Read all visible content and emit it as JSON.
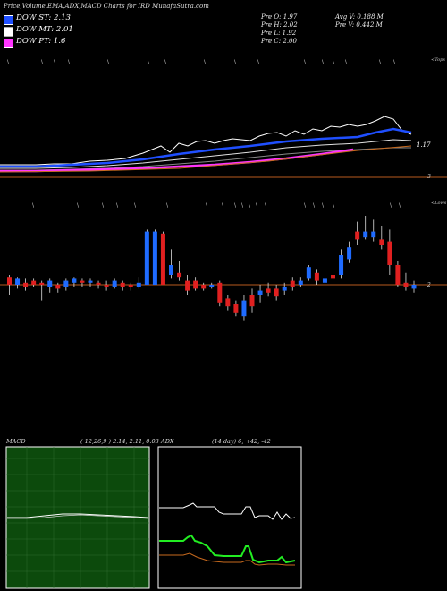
{
  "header": {
    "title": "Price,Volume,EMA,ADX,MACD Charts for IRD MunafaSutra.com"
  },
  "legend": [
    {
      "label": "DOW ST: 2.13",
      "color": "#1f4fff"
    },
    {
      "label": "DOW MT: 2.01",
      "color": "#ffffff"
    },
    {
      "label": "DOW PT: 1.6",
      "color": "#ff33ff"
    }
  ],
  "prev": {
    "open": "Pre   O: 1.97",
    "high": "Pre   H: 2.02",
    "low": "Pre   L: 1.92",
    "close": "Pre   C: 2.00",
    "avg_vol": "Avg V: 0.188  M",
    "prev_vol": "Pre   V: 0.442  M"
  },
  "price_panel": {
    "right_top_label": "<Tops",
    "level_label": "1.17",
    "level_value": "3"
  },
  "candle_panel": {
    "right_top_label": "<Lows",
    "level_value": "2"
  },
  "macd_panel": {
    "title": "MACD",
    "params": "( 12,26,9 ) 2.14,  2.11,  0.03"
  },
  "adx_panel": {
    "title": "ADX",
    "params": "(14  day) 6,  +42,  -42"
  },
  "chart_data": {
    "type": "candlestick",
    "title": "Price,Volume,EMA,ADX,MACD Charts for IRD MunafaSutra.com",
    "series": [
      {
        "name": "DOW ST",
        "value": 2.13
      },
      {
        "name": "DOW MT",
        "value": 2.01
      },
      {
        "name": "DOW PT",
        "value": 1.6
      }
    ],
    "candles": [
      {
        "o": 0.0,
        "c": 0.4,
        "h": 0.5,
        "l": -0.5,
        "up": false
      },
      {
        "o": 0.0,
        "c": 0.3,
        "h": 0.4,
        "l": -0.2,
        "up": true
      },
      {
        "o": 0.1,
        "c": -0.1,
        "h": 0.3,
        "l": -0.3,
        "up": false
      },
      {
        "o": 0.0,
        "c": 0.2,
        "h": 0.3,
        "l": -0.1,
        "up": false
      },
      {
        "o": 0.0,
        "c": 0.1,
        "h": 0.2,
        "l": -0.8,
        "up": false
      },
      {
        "o": -0.1,
        "c": 0.2,
        "h": 0.3,
        "l": -0.4,
        "up": true
      },
      {
        "o": 0.0,
        "c": -0.2,
        "h": 0.1,
        "l": -0.4,
        "up": false
      },
      {
        "o": -0.1,
        "c": 0.2,
        "h": 0.3,
        "l": -0.3,
        "up": true
      },
      {
        "o": 0.1,
        "c": 0.3,
        "h": 0.4,
        "l": -0.1,
        "up": true
      },
      {
        "o": 0.2,
        "c": 0.1,
        "h": 0.3,
        "l": -0.1,
        "up": false
      },
      {
        "o": 0.1,
        "c": 0.2,
        "h": 0.3,
        "l": -0.1,
        "up": true
      },
      {
        "o": 0.1,
        "c": 0.0,
        "h": 0.2,
        "l": -0.2,
        "up": false
      },
      {
        "o": 0.0,
        "c": -0.1,
        "h": 0.2,
        "l": -0.3,
        "up": false
      },
      {
        "o": -0.1,
        "c": 0.2,
        "h": 0.3,
        "l": -0.2,
        "up": true
      },
      {
        "o": 0.1,
        "c": -0.1,
        "h": 0.2,
        "l": -0.3,
        "up": false
      },
      {
        "o": 0.0,
        "c": -0.1,
        "h": 0.1,
        "l": -0.3,
        "up": false
      },
      {
        "o": -0.1,
        "c": 0.1,
        "h": 0.4,
        "l": -0.2,
        "up": true
      },
      {
        "o": 0.0,
        "c": 2.7,
        "h": 2.8,
        "l": 0.0,
        "up": true
      },
      {
        "o": 0.0,
        "c": 2.7,
        "h": 2.8,
        "l": 0.0,
        "up": true
      },
      {
        "o": 0.0,
        "c": 2.6,
        "h": 2.7,
        "l": 0.0,
        "up": false
      },
      {
        "o": 0.5,
        "c": 1.0,
        "h": 1.8,
        "l": 0.3,
        "up": true
      },
      {
        "o": 0.4,
        "c": 0.6,
        "h": 1.2,
        "l": 0.2,
        "up": false
      },
      {
        "o": 0.2,
        "c": -0.3,
        "h": 0.5,
        "l": -0.5,
        "up": false
      },
      {
        "o": 0.2,
        "c": -0.2,
        "h": 0.4,
        "l": -0.3,
        "up": false
      },
      {
        "o": 0.0,
        "c": -0.2,
        "h": 0.1,
        "l": -0.3,
        "up": false
      },
      {
        "o": -0.1,
        "c": 0.0,
        "h": 0.1,
        "l": -0.2,
        "up": true
      },
      {
        "o": 0.1,
        "c": -0.9,
        "h": 0.2,
        "l": -1.1,
        "up": false
      },
      {
        "o": -0.7,
        "c": -1.1,
        "h": -0.5,
        "l": -1.3,
        "up": false
      },
      {
        "o": -1.0,
        "c": -1.4,
        "h": -0.8,
        "l": -1.6,
        "up": false
      },
      {
        "o": -0.8,
        "c": -1.6,
        "h": -0.5,
        "l": -1.8,
        "up": true
      },
      {
        "o": -0.5,
        "c": -1.1,
        "h": -0.2,
        "l": -1.4,
        "up": false
      },
      {
        "o": -0.5,
        "c": -0.3,
        "h": 0.0,
        "l": -0.9,
        "up": true
      },
      {
        "o": -0.2,
        "c": -0.4,
        "h": 0.1,
        "l": -0.6,
        "up": false
      },
      {
        "o": -0.2,
        "c": -0.6,
        "h": 0.0,
        "l": -0.8,
        "up": false
      },
      {
        "o": -0.3,
        "c": -0.1,
        "h": 0.1,
        "l": -0.5,
        "up": true
      },
      {
        "o": 0.2,
        "c": -0.1,
        "h": 0.4,
        "l": -0.3,
        "up": false
      },
      {
        "o": 0.0,
        "c": 0.2,
        "h": 0.4,
        "l": -0.1,
        "up": true
      },
      {
        "o": 0.3,
        "c": 0.9,
        "h": 1.0,
        "l": 0.2,
        "up": true
      },
      {
        "o": 0.6,
        "c": 0.2,
        "h": 0.8,
        "l": 0.0,
        "up": false
      },
      {
        "o": 0.1,
        "c": 0.3,
        "h": 0.6,
        "l": -0.1,
        "up": true
      },
      {
        "o": 0.3,
        "c": 0.5,
        "h": 0.7,
        "l": 0.1,
        "up": false
      },
      {
        "o": 0.5,
        "c": 1.5,
        "h": 1.8,
        "l": 0.3,
        "up": true
      },
      {
        "o": 1.3,
        "c": 1.9,
        "h": 2.2,
        "l": 1.1,
        "up": true
      },
      {
        "o": 2.3,
        "c": 2.7,
        "h": 3.2,
        "l": 2.0,
        "up": false
      },
      {
        "o": 2.4,
        "c": 2.7,
        "h": 3.5,
        "l": 2.3,
        "up": true
      },
      {
        "o": 2.4,
        "c": 2.7,
        "h": 3.3,
        "l": 2.2,
        "up": true
      },
      {
        "o": 2.0,
        "c": 2.3,
        "h": 3.0,
        "l": 1.8,
        "up": false
      },
      {
        "o": 2.2,
        "c": 1.0,
        "h": 2.8,
        "l": 0.5,
        "up": false
      },
      {
        "o": 1.0,
        "c": 0.0,
        "h": 1.2,
        "l": -0.1,
        "up": false
      },
      {
        "o": 0.1,
        "c": -0.1,
        "h": 0.6,
        "l": -0.3,
        "up": false
      },
      {
        "o": 0.0,
        "c": -0.2,
        "h": 0.2,
        "l": -0.4,
        "up": true
      }
    ]
  }
}
